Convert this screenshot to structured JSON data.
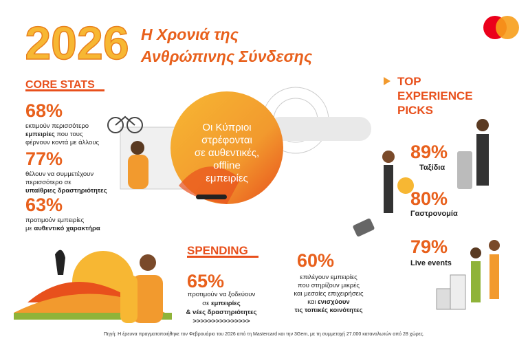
{
  "header": {
    "year": "2026",
    "title_lines": [
      "Η Χρονιά της",
      "Ανθρώπινης Σύνδεσης"
    ]
  },
  "core_stats": {
    "title": "CORE STATS",
    "items": [
      {
        "value": "68%",
        "lines": [
          [
            {
              "text": "εκτιμούν περισσότερο"
            }
          ],
          [
            {
              "text": "εμπειρίες",
              "bold": true
            },
            {
              "text": " που τους"
            }
          ],
          [
            {
              "text": "φέρνουν κοντά με άλλους"
            }
          ]
        ]
      },
      {
        "value": "77%",
        "lines": [
          [
            {
              "text": "θέλουν να συμμετέχουν"
            }
          ],
          [
            {
              "text": "περισσότερο σε"
            }
          ],
          [
            {
              "text": "υπαίθριες δραστηριότητες",
              "bold": true
            }
          ]
        ]
      },
      {
        "value": "63%",
        "lines": [
          [
            {
              "text": "προτιμούν εμπειρίες"
            }
          ],
          [
            {
              "text": "με "
            },
            {
              "text": "αυθεντικό χαρακτήρα",
              "bold": true
            }
          ]
        ]
      }
    ]
  },
  "center": {
    "lines": [
      "Οι Κύπριοι",
      "στρέφονται",
      "σε αυθεντικές,",
      "offline",
      "εμπειρίες"
    ]
  },
  "top_picks": {
    "title_lines": [
      "TOP",
      "EXPERIENCE",
      "PICKS"
    ],
    "items": [
      {
        "value": "89%",
        "label": "Ταξίδια"
      },
      {
        "value": "80%",
        "label": "Γαστρονομία"
      },
      {
        "value": "79%",
        "label": "Live events"
      }
    ]
  },
  "spending": {
    "title": "SPENDING",
    "value": "65%",
    "lines": [
      [
        {
          "text": "προτιμούν να ξοδεύουν"
        }
      ],
      [
        {
          "text": "σε "
        },
        {
          "text": "εμπειρίες",
          "bold": true
        }
      ],
      [
        {
          "text": "& νέες δραστηριότητες",
          "bold": true
        }
      ],
      [
        {
          "text": ">>>>>>>>>>>>>>>",
          "bold": true
        }
      ]
    ]
  },
  "local": {
    "value": "60%",
    "lines": [
      [
        {
          "text": "επιλέγουν εμπειρίες"
        }
      ],
      [
        {
          "text": "που στηρίζουν μικρές"
        }
      ],
      [
        {
          "text": "και μεσαίες επιχειρήσεις"
        }
      ],
      [
        {
          "text": "και "
        },
        {
          "text": "ενισχύουν",
          "bold": true
        }
      ],
      [
        {
          "text": "τις τοπικές κοινότητες",
          "bold": true
        }
      ]
    ]
  },
  "footer": {
    "source": "Πηγή: Η έρευνα πραγματοποιήθηκε τον Φεβρουάριο του 2026 από τη Mastercard και την 3Gem, με τη συμμετοχή 27.000 καταναλωτών από 28 χώρες."
  }
}
